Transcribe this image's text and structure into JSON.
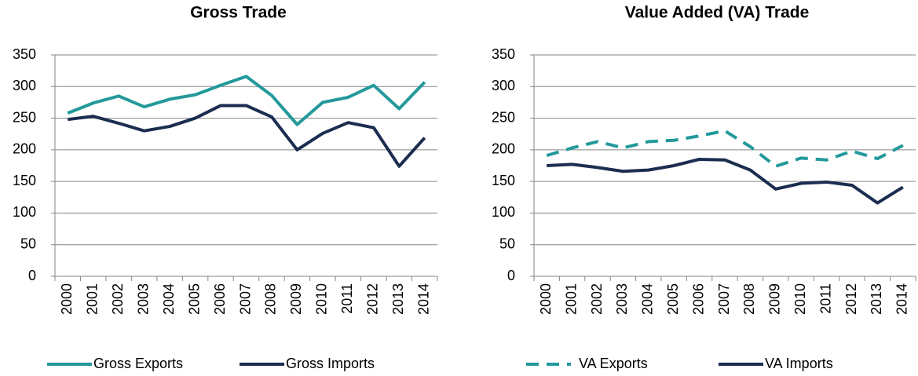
{
  "chart_data": [
    {
      "type": "line",
      "title": "Gross Trade",
      "categories": [
        "2000",
        "2001",
        "2002",
        "2003",
        "2004",
        "2005",
        "2006",
        "2007",
        "2008",
        "2009",
        "2010",
        "2011",
        "2012",
        "2013",
        "2014"
      ],
      "series": [
        {
          "name": "Gross Exports",
          "color": "#23999b",
          "dashed": false,
          "values": [
            258,
            274,
            285,
            268,
            280,
            287,
            302,
            316,
            286,
            240,
            275,
            283,
            302,
            265,
            307
          ]
        },
        {
          "name": "Gross Imports",
          "color": "#1b2d50",
          "dashed": false,
          "values": [
            248,
            253,
            242,
            230,
            237,
            250,
            270,
            270,
            252,
            200,
            226,
            243,
            235,
            174,
            219
          ]
        }
      ],
      "ylim": [
        0,
        350
      ],
      "yticks": [
        0,
        50,
        100,
        150,
        200,
        250,
        300,
        350
      ],
      "grid": true
    },
    {
      "type": "line",
      "title": "Value Added (VA) Trade",
      "categories": [
        "2000",
        "2001",
        "2002",
        "2003",
        "2004",
        "2005",
        "2006",
        "2007",
        "2008",
        "2009",
        "2010",
        "2011",
        "2012",
        "2013",
        "2014"
      ],
      "series": [
        {
          "name": "VA Exports",
          "color": "#23999b",
          "dashed": true,
          "values": [
            191,
            203,
            213,
            203,
            213,
            215,
            222,
            230,
            205,
            174,
            187,
            184,
            198,
            186,
            207
          ]
        },
        {
          "name": "VA Imports",
          "color": "#1b2d50",
          "dashed": false,
          "values": [
            175,
            177,
            172,
            166,
            168,
            175,
            185,
            184,
            168,
            138,
            147,
            149,
            144,
            116,
            141
          ]
        }
      ],
      "ylim": [
        0,
        350
      ],
      "yticks": [
        0,
        50,
        100,
        150,
        200,
        250,
        300,
        350
      ],
      "grid": true
    }
  ]
}
